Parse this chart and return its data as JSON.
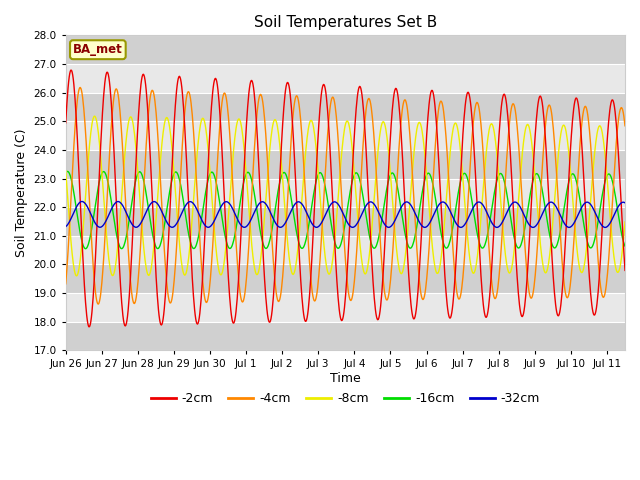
{
  "title": "Soil Temperatures Set B",
  "xlabel": "Time",
  "ylabel": "Soil Temperature (C)",
  "annotation": "BA_met",
  "ylim": [
    17.0,
    28.0
  ],
  "yticks": [
    17.0,
    18.0,
    19.0,
    20.0,
    21.0,
    22.0,
    23.0,
    24.0,
    25.0,
    26.0,
    27.0,
    28.0
  ],
  "fig_bg_color": "#ffffff",
  "plot_bg_color": "#e8e8e8",
  "band_color_dark": "#d0d0d0",
  "band_color_light": "#e8e8e8",
  "line_colors": {
    "-2cm": "#ee0000",
    "-4cm": "#ff8800",
    "-8cm": "#eeee00",
    "-16cm": "#00dd00",
    "-32cm": "#0000cc"
  },
  "xtick_labels": [
    "Jun 26",
    "Jun 27",
    "Jun 28",
    "Jun 29",
    "Jun 30",
    "Jul 1",
    "Jul 2",
    "Jul 3",
    "Jul 4",
    "Jul 5",
    "Jul 6",
    "Jul 7",
    "Jul 8",
    "Jul 9",
    "Jul 10",
    "Jul 11"
  ],
  "n_points": 960,
  "start_day": 0,
  "end_day": 15.5,
  "mean_2cm": 22.3,
  "mean_4cm": 22.4,
  "mean_8cm": 22.4,
  "mean_16cm": 21.9,
  "mean_32cm": 21.75,
  "amp_2cm": 4.5,
  "amp_4cm": 3.8,
  "amp_8cm": 2.8,
  "amp_16cm": 1.35,
  "amp_32cm": 0.45,
  "phase_2cm": -0.1,
  "phase_4cm": 0.15,
  "phase_8cm": 0.55,
  "phase_16cm": 1.8,
  "phase_32cm": 3.2,
  "decay_2cm": 0.0008,
  "decay_4cm": 0.0006,
  "decay_8cm": 0.0004,
  "decay_16cm": 0.0002,
  "decay_32cm": 0.0001,
  "mean_drift_2cm": -0.02,
  "mean_drift_4cm": -0.015,
  "mean_drift_8cm": -0.008,
  "mean_drift_16cm": -0.002,
  "mean_drift_32cm": -0.001
}
